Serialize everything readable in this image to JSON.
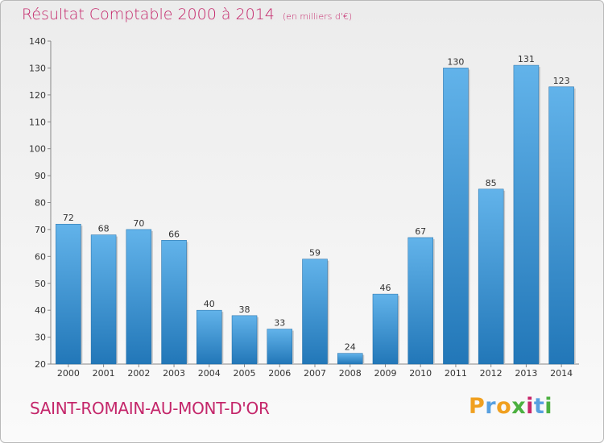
{
  "title": "Résultat Comptable 2000 à 2014",
  "subtitle": "(en milliers d'€)",
  "commune": "SAINT-ROMAIN-AU-MONT-D'OR",
  "logo": {
    "letters": [
      "P",
      "r",
      "o",
      "x",
      "i",
      "t",
      "i"
    ],
    "colors": [
      "#f0a020",
      "#58a0e0",
      "#f0a020",
      "#4cb040",
      "#c8266a",
      "#58a0e0",
      "#4cb040"
    ]
  },
  "colors": {
    "bar_light": "#62b3ea",
    "bar_dark": "#2277b8",
    "text": "#c4266a"
  },
  "chart_data": {
    "type": "bar",
    "title": "Résultat Comptable 2000 à 2014",
    "ylabel": "en milliers d'€",
    "xlabel": "",
    "ylim": [
      20,
      140
    ],
    "yticks": [
      20,
      30,
      40,
      50,
      60,
      70,
      80,
      90,
      100,
      110,
      120,
      130,
      140
    ],
    "grid": false,
    "categories": [
      "2000",
      "2001",
      "2002",
      "2003",
      "2004",
      "2005",
      "2006",
      "2007",
      "2008",
      "2009",
      "2010",
      "2011",
      "2012",
      "2013",
      "2014"
    ],
    "values": [
      72,
      68,
      70,
      66,
      40,
      38,
      33,
      59,
      24,
      46,
      67,
      130,
      85,
      131,
      123
    ]
  }
}
